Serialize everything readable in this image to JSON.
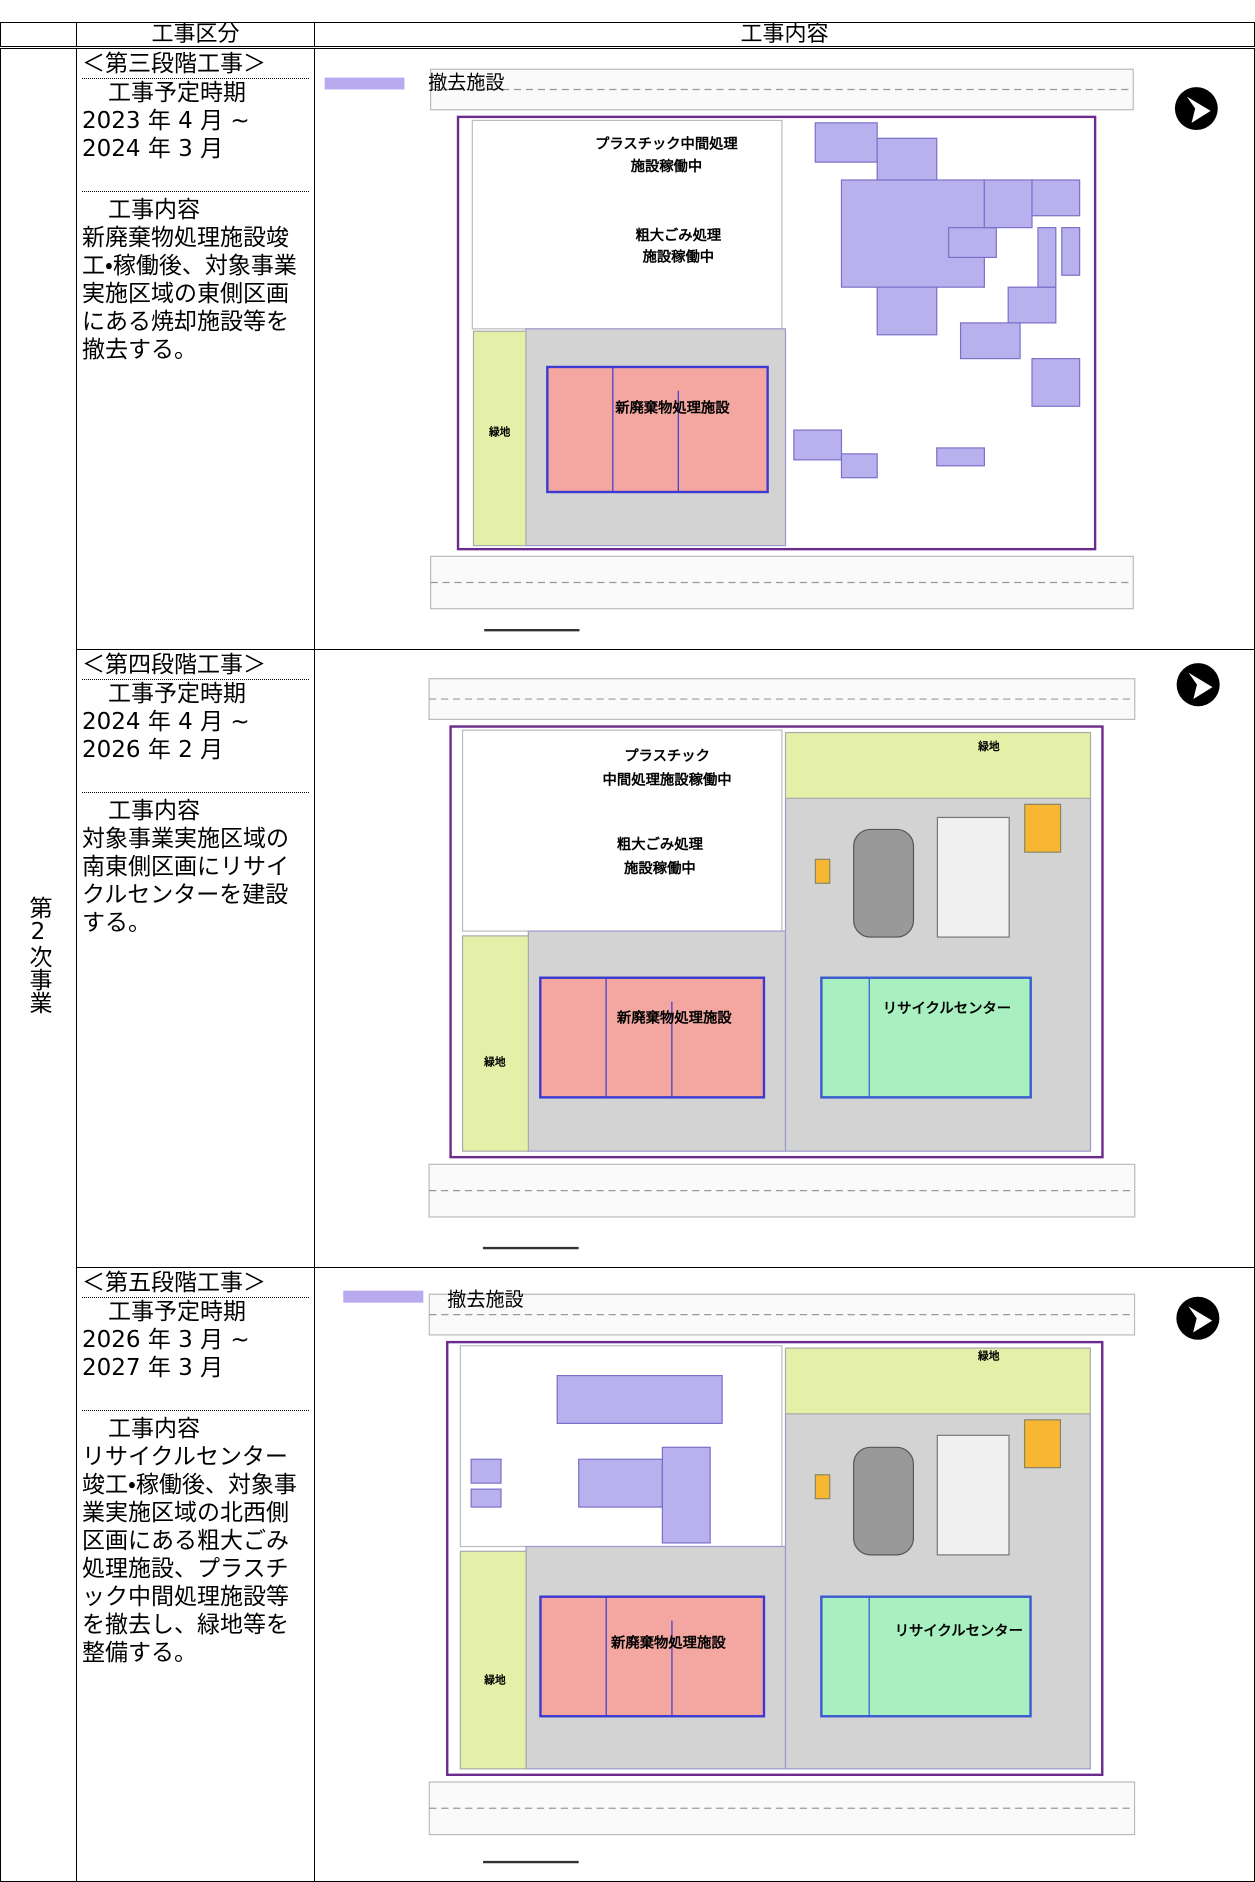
{
  "header": {
    "columns": [
      "工事区分",
      "工事内容"
    ]
  },
  "phase": "第2次事業",
  "rows": [
    {
      "stage": "＜第三段階工事＞",
      "period_label": "工事予定時期",
      "period": [
        "2023 年 4 月 ~",
        "2024 年 3 月"
      ],
      "content_label": "工事内容",
      "content": "新廃棄物処理施設竣工・稼働後、対象事業実施区域の東側区画にある焼却施設等を撤去する。",
      "plan": {
        "legend": "撤去施設",
        "labels": [
          "プラスチック中間処理",
          "施設稼働中",
          "粗大ごみ処理",
          "施設稼働中",
          "新廃棄物処理施設",
          "緑地"
        ]
      }
    },
    {
      "stage": "＜第四段階工事＞",
      "period_label": "工事予定時期",
      "period": [
        "2024 年 4 月 ~",
        "2026 年 2 月"
      ],
      "content_label": "工事内容",
      "content": "対象事業実施区域の南東側区画にリサイクルセンターを建設する。",
      "plan": {
        "labels": [
          "プラスチック",
          "中間処理施設稼働中",
          "粗大ごみ処理",
          "施設稼働中",
          "新廃棄物処理施設",
          "リサイクルセンター",
          "緑地",
          "緑地"
        ]
      }
    },
    {
      "stage": "＜第五段階工事＞",
      "period_label": "工事予定時期",
      "period": [
        "2026 年 3 月 ~",
        "2027 年 3 月"
      ],
      "content_label": "工事内容",
      "content": "リサイクルセンター竣工・稼働後、対象事業実施区域の北西側区画にある粗大ごみ処理施設、プラスチック中間処理施設等を撤去し、緑地等を整備する。",
      "plan": {
        "legend": "撤去施設",
        "labels": [
          "新廃棄物処理施設",
          "リサイクルセンター",
          "緑地",
          "緑地"
        ]
      }
    }
  ]
}
